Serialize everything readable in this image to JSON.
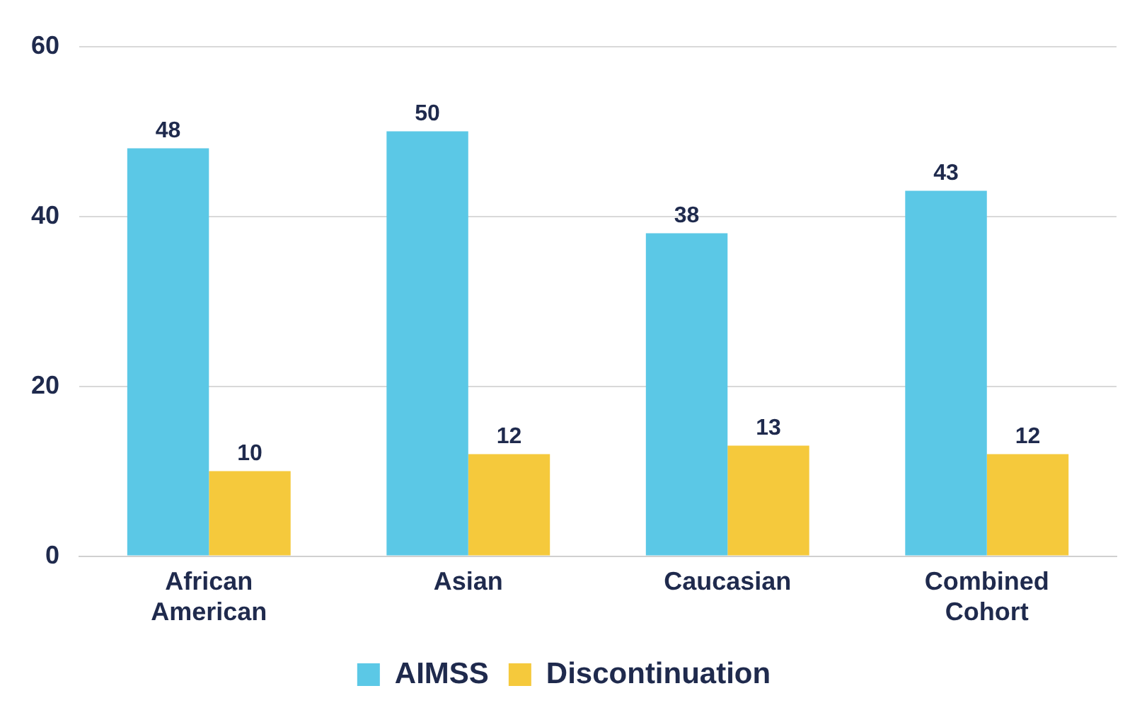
{
  "chart_data": {
    "type": "bar",
    "categories": [
      "African American",
      "Asian",
      "Caucasian",
      "Combined Cohort"
    ],
    "series": [
      {
        "name": "AIMSS",
        "color": "#5bc8e6",
        "values": [
          48,
          50,
          38,
          43
        ]
      },
      {
        "name": "Discontinuation",
        "color": "#f5c93c",
        "values": [
          10,
          12,
          13,
          12
        ]
      }
    ],
    "ylim": [
      0,
      60
    ],
    "yticks": [
      0,
      20,
      40,
      60
    ],
    "grid": "y",
    "legend": "bottom",
    "data_labels": true
  }
}
